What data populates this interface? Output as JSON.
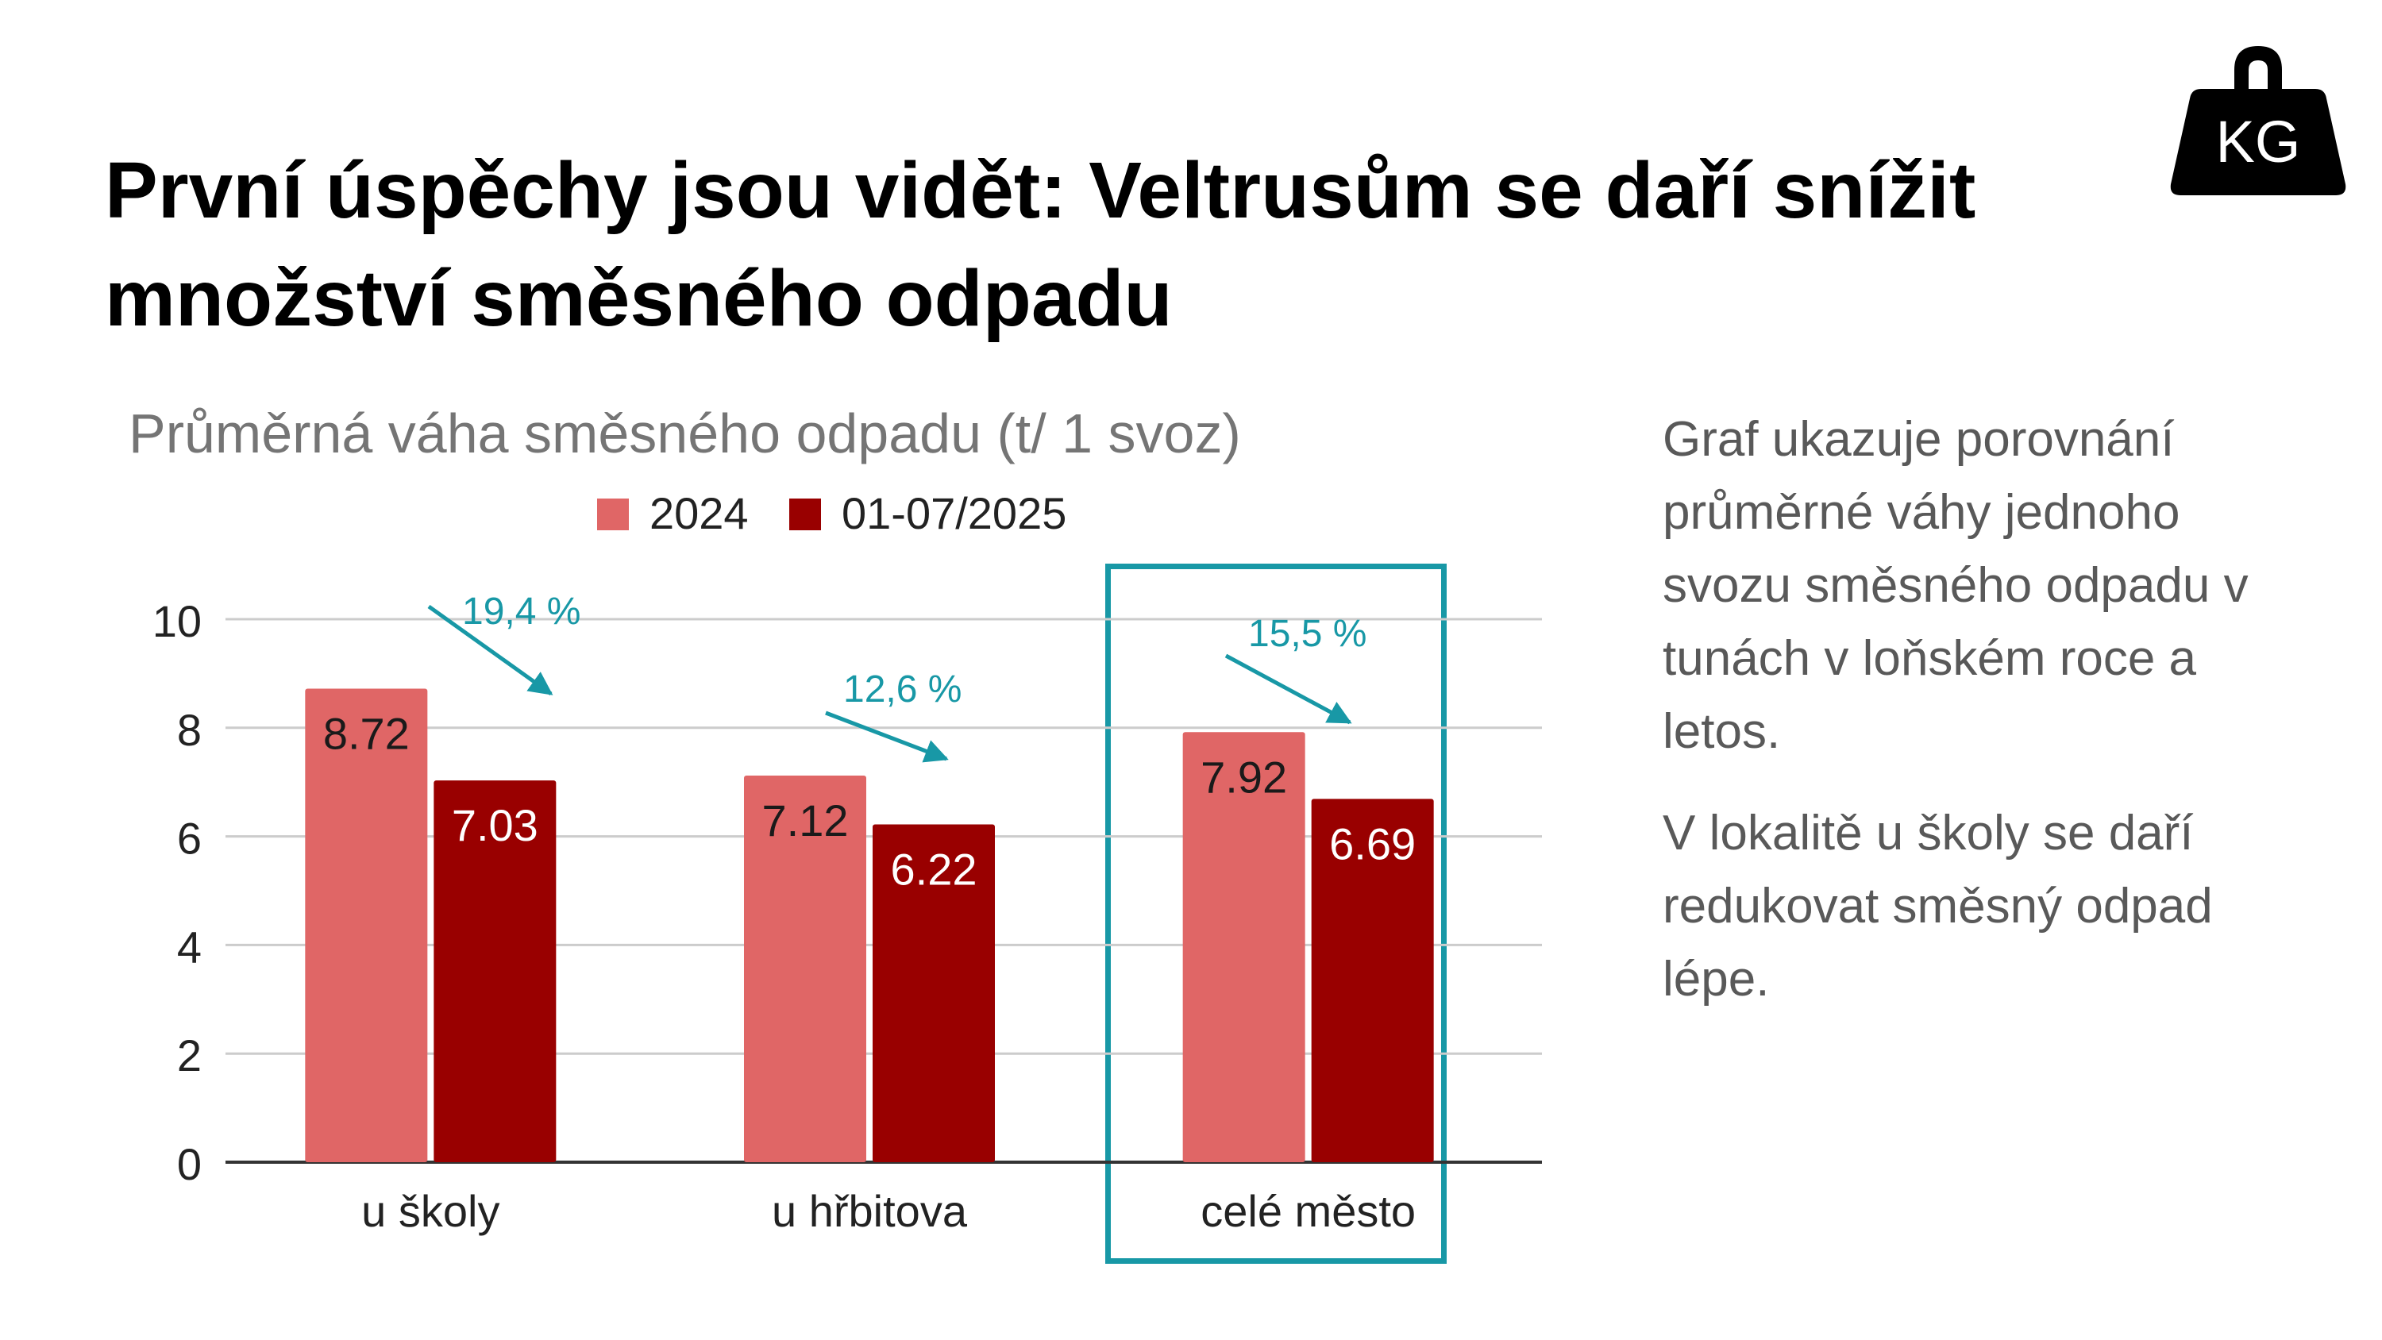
{
  "slide": {
    "title_line1": "První úspěchy jsou vidět: Veltrusům se daří snížit",
    "title_line2": "množství směsného odpadu",
    "icon": "kg-weight-icon",
    "icon_label": "KG"
  },
  "side_text": {
    "paragraph1": "Graf ukazuje porovnání průměrné váhy jednoho svozu směsného odpadu v tunách v loňském roce a letos.",
    "paragraph2": "V lokalitě u školy se daří redukovat směsný odpad lépe."
  },
  "chart_data": {
    "type": "bar",
    "title": "Průměrná váha směsného odpadu (t/ 1 svoz)",
    "categories": [
      "u školy",
      "u hřbitova",
      "celé město"
    ],
    "series": [
      {
        "name": "2024",
        "values": [
          8.72,
          7.12,
          7.92
        ],
        "color": "#e06666"
      },
      {
        "name": "01-07/2025",
        "values": [
          7.03,
          6.22,
          6.69
        ],
        "color": "#990000"
      }
    ],
    "ylim": [
      0,
      10
    ],
    "yticks": [
      0,
      2,
      4,
      6,
      8,
      10
    ],
    "grid": true,
    "legend_position": "top-center",
    "annotations": [
      {
        "category": "u školy",
        "text": "19,4 %"
      },
      {
        "category": "u hřbitova",
        "text": "12,6 %"
      },
      {
        "category": "celé město",
        "text": "15,5 %"
      }
    ],
    "annotation_color": "#1898a6",
    "highlighted_category": "celé město"
  }
}
